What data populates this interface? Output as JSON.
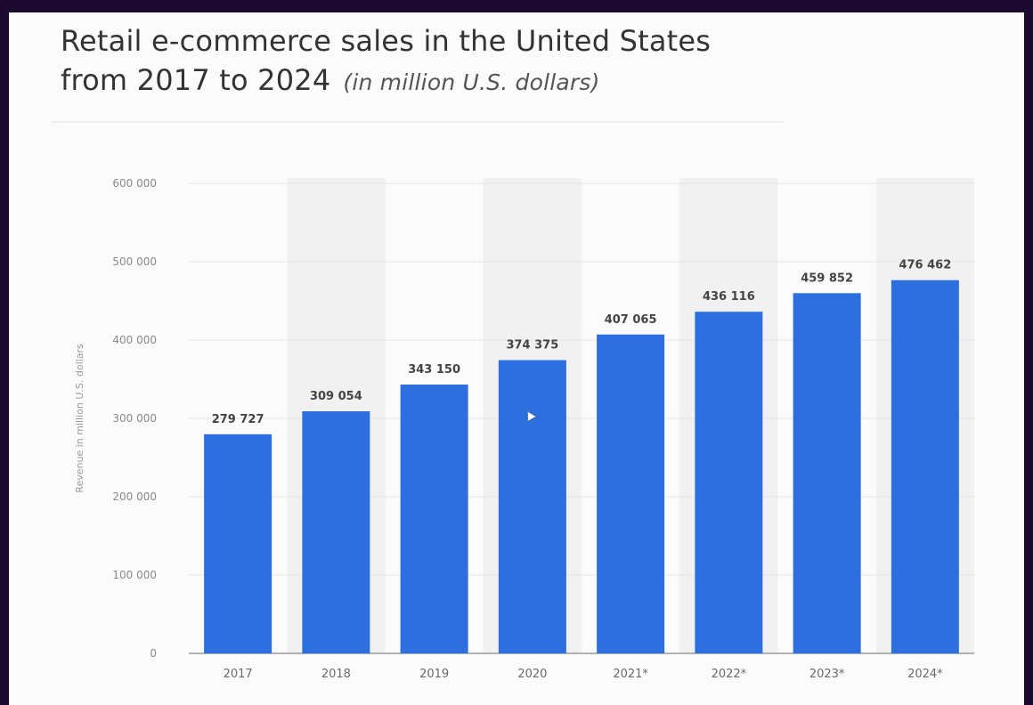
{
  "title_line1": "Retail e-commerce sales in the United States",
  "title_line2": "from 2017 to 2024",
  "title_unit": "(in million U.S. dollars)",
  "colors": {
    "bar": "#2d6fdf",
    "band": "#f1f1f1",
    "grid": "#e4e4e4",
    "axis": "#999999"
  },
  "chart_data": {
    "type": "bar",
    "title": "Retail e-commerce sales in the United States from 2017 to 2024 (in million U.S. dollars)",
    "xlabel": "",
    "ylabel": "Revenue in million U.S. dollars",
    "categories": [
      "2017",
      "2018",
      "2019",
      "2020",
      "2021*",
      "2022*",
      "2023*",
      "2024*"
    ],
    "values": [
      279727,
      309054,
      343150,
      374375,
      407065,
      436116,
      459852,
      476462
    ],
    "value_labels": [
      "279 727",
      "309 054",
      "343 150",
      "374 375",
      "407 065",
      "436 116",
      "459 852",
      "476 462"
    ],
    "yticks": [
      0,
      100000,
      200000,
      300000,
      400000,
      500000,
      600000
    ],
    "ytick_labels": [
      "0",
      "100 000",
      "200 000",
      "300 000",
      "400 000",
      "500 000",
      "600 000"
    ],
    "ylim": [
      0,
      600000
    ],
    "grid": true,
    "legend": false
  }
}
